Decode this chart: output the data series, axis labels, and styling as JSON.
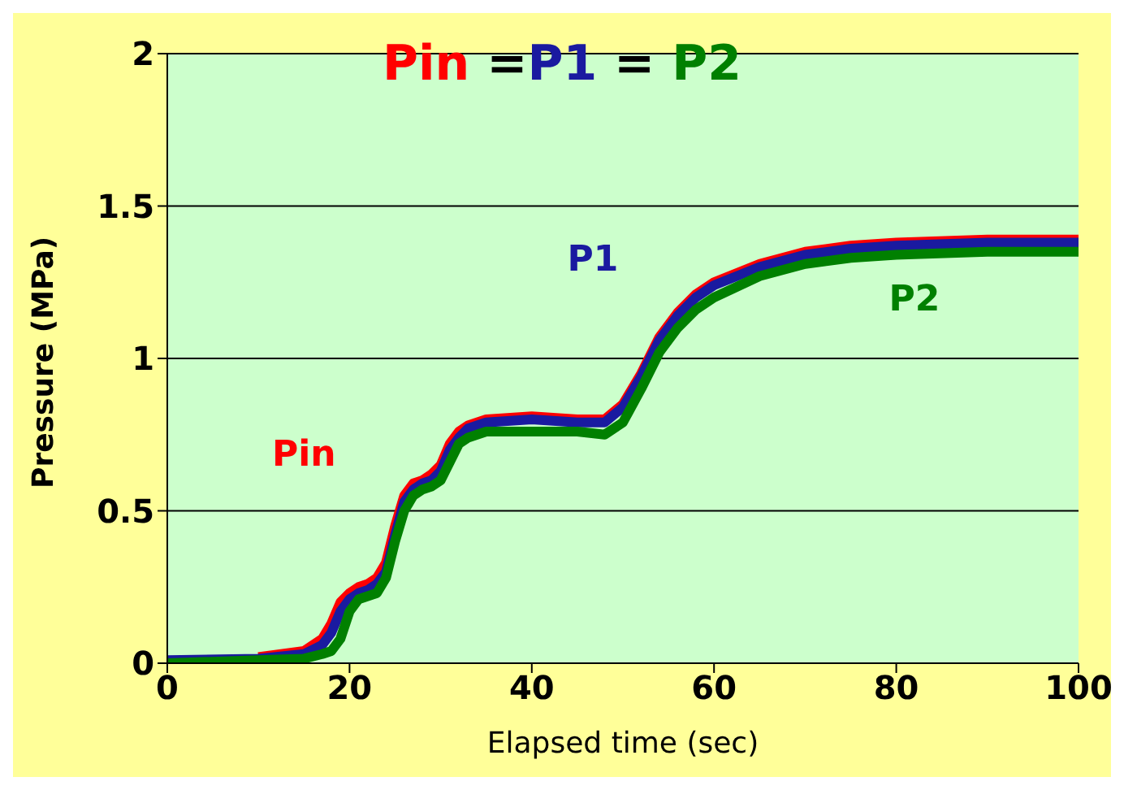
{
  "chart_data": {
    "type": "line",
    "title": "Pin =P1 = P2",
    "xlabel": "Elapsed time (sec)",
    "ylabel": "Pressure (MPa)",
    "x": [
      0,
      10,
      15,
      17,
      18,
      19,
      20,
      21,
      22,
      23,
      24,
      25,
      26,
      27,
      28,
      29,
      30,
      31,
      32,
      33,
      35,
      40,
      45,
      48,
      50,
      52,
      54,
      56,
      58,
      60,
      65,
      70,
      75,
      80,
      90,
      100
    ],
    "series": [
      {
        "name": "Pin",
        "color": "#ff0000",
        "values": [
          null,
          0.02,
          0.04,
          0.08,
          0.13,
          0.2,
          0.23,
          0.25,
          0.26,
          0.28,
          0.33,
          0.45,
          0.55,
          0.59,
          0.6,
          0.62,
          0.65,
          0.72,
          0.76,
          0.78,
          0.8,
          0.81,
          0.8,
          0.8,
          0.85,
          0.95,
          1.07,
          1.15,
          1.21,
          1.25,
          1.31,
          1.35,
          1.37,
          1.38,
          1.39,
          1.39
        ]
      },
      {
        "name": "P1",
        "color": "#1a1aa0",
        "values": [
          0.01,
          0.015,
          0.03,
          0.06,
          0.1,
          0.17,
          0.21,
          0.23,
          0.24,
          0.26,
          0.3,
          0.42,
          0.53,
          0.57,
          0.59,
          0.6,
          0.63,
          0.7,
          0.74,
          0.77,
          0.79,
          0.8,
          0.79,
          0.79,
          0.84,
          0.94,
          1.06,
          1.14,
          1.2,
          1.24,
          1.3,
          1.34,
          1.36,
          1.37,
          1.38,
          1.38
        ]
      },
      {
        "name": "P2",
        "color": "#008000",
        "values": [
          0,
          0.01,
          0.015,
          0.03,
          0.04,
          0.08,
          0.17,
          0.21,
          0.22,
          0.23,
          0.28,
          0.4,
          0.5,
          0.55,
          0.57,
          0.58,
          0.6,
          0.66,
          0.72,
          0.74,
          0.76,
          0.76,
          0.76,
          0.75,
          0.79,
          0.9,
          1.02,
          1.1,
          1.16,
          1.2,
          1.27,
          1.31,
          1.33,
          1.34,
          1.35,
          1.35
        ]
      }
    ],
    "xlim": [
      0,
      100
    ],
    "xticks": [
      0,
      20,
      40,
      60,
      80,
      100
    ],
    "ylim": [
      0,
      2
    ],
    "yticks": [
      0,
      0.5,
      1,
      1.5,
      2
    ],
    "grid": "y",
    "legend": false,
    "marker": "none",
    "line_style": "solid"
  }
}
